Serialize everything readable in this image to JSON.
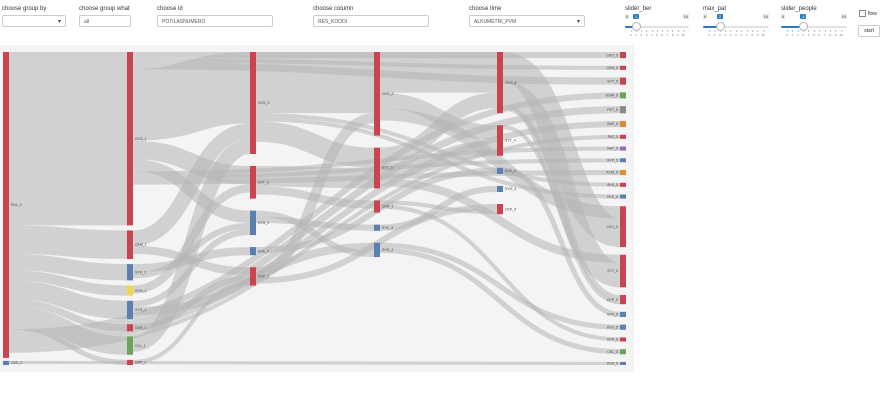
{
  "controls": {
    "group_by": {
      "label": "choose group by",
      "value": ""
    },
    "group_what": {
      "label": "choose group what",
      "value": "all"
    },
    "id": {
      "label": "choose id",
      "value": "POTILASNUMERO"
    },
    "column": {
      "label": "choose column",
      "value": "RES_KOODI"
    },
    "time": {
      "label": "choose time",
      "value": "ALKUMETRI_PVM"
    },
    "slider_ber": {
      "label": "slider_ber",
      "min": "0",
      "max": "10",
      "value": "1",
      "ticks": [
        "0",
        "1",
        "2",
        "3",
        "4",
        "5",
        "6",
        "7",
        "8",
        "9",
        "10"
      ]
    },
    "max_pat": {
      "label": "max_pat",
      "min": "0",
      "max": "10",
      "value": "2",
      "ticks": [
        "0",
        "1",
        "2",
        "3",
        "4",
        "5",
        "6",
        "7",
        "8",
        "9",
        "10"
      ]
    },
    "slider_people": {
      "label": "slider_people",
      "min": "0",
      "max": "10",
      "value": "3",
      "ticks": [
        "0",
        "1",
        "2",
        "3",
        "4",
        "5",
        "6",
        "7",
        "8",
        "9",
        "10"
      ]
    },
    "flow": {
      "label": "flow",
      "checked": false
    },
    "start": {
      "label": "start"
    }
  },
  "colors": {
    "red": "#c9444f",
    "blue": "#5b7fb0",
    "green": "#6aa35a",
    "yellow": "#f0d84a",
    "orange": "#e08a3c",
    "purple": "#9a6bb0",
    "gray": "#8a8a8a",
    "link": "#b5b5b5"
  },
  "chart_data": {
    "type": "sankey",
    "nodes": [
      {
        "id": "c0a",
        "label": "RAL_0",
        "column": 0,
        "value": 300,
        "color": "red"
      },
      {
        "id": "c0b",
        "label": "CDS_0",
        "column": 0,
        "value": 4,
        "color": "blue"
      },
      {
        "id": "c1a",
        "label": "CKG_1",
        "column": 1,
        "value": 170,
        "color": "red"
      },
      {
        "id": "c1b",
        "label": "CEM_1",
        "column": 1,
        "value": 28,
        "color": "red"
      },
      {
        "id": "c1c",
        "label": "SYK_1",
        "column": 1,
        "value": 16,
        "color": "blue"
      },
      {
        "id": "c1d",
        "label": "GYN_1",
        "column": 1,
        "value": 10,
        "color": "yellow"
      },
      {
        "id": "c1e",
        "label": "SYG_1",
        "column": 1,
        "value": 18,
        "color": "blue"
      },
      {
        "id": "c1f",
        "label": "CKR_1",
        "column": 1,
        "value": 7,
        "color": "red"
      },
      {
        "id": "c1g",
        "label": "CKL_1",
        "column": 1,
        "value": 18,
        "color": "green"
      },
      {
        "id": "c1h",
        "label": "CKP_1",
        "column": 1,
        "value": 5,
        "color": "red"
      },
      {
        "id": "c2a",
        "label": "CKG_2",
        "column": 2,
        "value": 100,
        "color": "red"
      },
      {
        "id": "c2b",
        "label": "SYT_2",
        "column": 2,
        "value": 32,
        "color": "red"
      },
      {
        "id": "c2c",
        "label": "SYG_2",
        "column": 2,
        "value": 24,
        "color": "blue"
      },
      {
        "id": "c2d",
        "label": "SYK_2",
        "column": 2,
        "value": 8,
        "color": "blue"
      },
      {
        "id": "c2e",
        "label": "CKP_2",
        "column": 2,
        "value": 18,
        "color": "red"
      },
      {
        "id": "c3a",
        "label": "CKG_3",
        "column": 3,
        "value": 82,
        "color": "red"
      },
      {
        "id": "c3b",
        "label": "SYT_3",
        "column": 3,
        "value": 40,
        "color": "red"
      },
      {
        "id": "c3c",
        "label": "CKR_3",
        "column": 3,
        "value": 12,
        "color": "red"
      },
      {
        "id": "c3d",
        "label": "SYK_3",
        "column": 3,
        "value": 6,
        "color": "blue"
      },
      {
        "id": "c3e",
        "label": "SYG_3",
        "column": 3,
        "value": 14,
        "color": "blue"
      },
      {
        "id": "c4a",
        "label": "CKG_4",
        "column": 4,
        "value": 60,
        "color": "red"
      },
      {
        "id": "c4b",
        "label": "SYT_4",
        "column": 4,
        "value": 30,
        "color": "red"
      },
      {
        "id": "c4c",
        "label": "SYK_4",
        "column": 4,
        "value": 6,
        "color": "blue"
      },
      {
        "id": "c4d",
        "label": "SYG_4",
        "column": 4,
        "value": 6,
        "color": "blue"
      },
      {
        "id": "c4e",
        "label": "CKP_4",
        "column": 4,
        "value": 10,
        "color": "red"
      },
      {
        "id": "c5a",
        "label": "CKO_5",
        "column": 5,
        "value": 6,
        "color": "red"
      },
      {
        "id": "c5b",
        "label": "CKM_5",
        "column": 5,
        "value": 4,
        "color": "red"
      },
      {
        "id": "c5c",
        "label": "SYT_5",
        "column": 5,
        "value": 7,
        "color": "red"
      },
      {
        "id": "c5d",
        "label": "KOW_5",
        "column": 5,
        "value": 6,
        "color": "green"
      },
      {
        "id": "c5e",
        "label": "PKT_5",
        "column": 5,
        "value": 7,
        "color": "gray"
      },
      {
        "id": "c5f",
        "label": "SAP_5",
        "column": 5,
        "value": 6,
        "color": "orange"
      },
      {
        "id": "c5g",
        "label": "PAT_5",
        "column": 5,
        "value": 4,
        "color": "red"
      },
      {
        "id": "c5h",
        "label": "NAT_5",
        "column": 5,
        "value": 4,
        "color": "purple"
      },
      {
        "id": "c5i",
        "label": "SYP_5",
        "column": 5,
        "value": 4,
        "color": "blue"
      },
      {
        "id": "c5j",
        "label": "KCM_5",
        "column": 5,
        "value": 5,
        "color": "orange"
      },
      {
        "id": "c5k",
        "label": "SKS_5",
        "column": 5,
        "value": 4,
        "color": "red"
      },
      {
        "id": "c5l",
        "label": "CKS_5",
        "column": 5,
        "value": 4,
        "color": "blue"
      },
      {
        "id": "c5m",
        "label": "CKG_5",
        "column": 5,
        "value": 40,
        "color": "red"
      },
      {
        "id": "c5n",
        "label": "SYT_5",
        "column": 5,
        "value": 32,
        "color": "red"
      },
      {
        "id": "c5o",
        "label": "CKP_5",
        "column": 5,
        "value": 9,
        "color": "red"
      },
      {
        "id": "c5p",
        "label": "SYK_5",
        "column": 5,
        "value": 5,
        "color": "blue"
      },
      {
        "id": "c5q",
        "label": "SYG_5",
        "column": 5,
        "value": 5,
        "color": "blue"
      },
      {
        "id": "c5r",
        "label": "CKR_5",
        "column": 5,
        "value": 4,
        "color": "red"
      },
      {
        "id": "c5s",
        "label": "CKL_5",
        "column": 5,
        "value": 5,
        "color": "green"
      },
      {
        "id": "c5t",
        "label": "CDS_5",
        "column": 5,
        "value": 3,
        "color": "blue"
      }
    ],
    "links": [
      {
        "source": "c0a",
        "target": "c1a",
        "value": 170
      },
      {
        "source": "c0a",
        "target": "c1b",
        "value": 28
      },
      {
        "source": "c0a",
        "target": "c1c",
        "value": 16
      },
      {
        "source": "c0a",
        "target": "c1d",
        "value": 10
      },
      {
        "source": "c0a",
        "target": "c1e",
        "value": 18
      },
      {
        "source": "c0a",
        "target": "c1f",
        "value": 7
      },
      {
        "source": "c0a",
        "target": "c1g",
        "value": 18
      },
      {
        "source": "c0a",
        "target": "c1h",
        "value": 5
      },
      {
        "source": "c0a",
        "target": "c5d",
        "value": 6
      },
      {
        "source": "c0a",
        "target": "c5e",
        "value": 7
      },
      {
        "source": "c0a",
        "target": "c5f",
        "value": 6
      },
      {
        "source": "c0a",
        "target": "c5g",
        "value": 4
      },
      {
        "source": "c0b",
        "target": "c5t",
        "value": 3
      },
      {
        "source": "c1a",
        "target": "c5a",
        "value": 6
      },
      {
        "source": "c1a",
        "target": "c5b",
        "value": 4
      },
      {
        "source": "c1a",
        "target": "c5c",
        "value": 7
      },
      {
        "source": "c1a",
        "target": "c2a",
        "value": 70
      },
      {
        "source": "c1a",
        "target": "c2b",
        "value": 18
      },
      {
        "source": "c1a",
        "target": "c2c",
        "value": 12
      },
      {
        "source": "c1a",
        "target": "c5h",
        "value": 4
      },
      {
        "source": "c1a",
        "target": "c5i",
        "value": 4
      },
      {
        "source": "c1a",
        "target": "c5j",
        "value": 5
      },
      {
        "source": "c1b",
        "target": "c2a",
        "value": 15
      },
      {
        "source": "c1b",
        "target": "c2e",
        "value": 8
      },
      {
        "source": "c1c",
        "target": "c2d",
        "value": 8
      },
      {
        "source": "c1c",
        "target": "c2c",
        "value": 6
      },
      {
        "source": "c1d",
        "target": "c2b",
        "value": 8
      },
      {
        "source": "c1e",
        "target": "c2c",
        "value": 6
      },
      {
        "source": "c1e",
        "target": "c3e",
        "value": 8
      },
      {
        "source": "c1f",
        "target": "c2e",
        "value": 6
      },
      {
        "source": "c1g",
        "target": "c2a",
        "value": 15
      },
      {
        "source": "c1h",
        "target": "c2e",
        "value": 4
      },
      {
        "source": "c2a",
        "target": "c3a",
        "value": 60
      },
      {
        "source": "c2a",
        "target": "c5k",
        "value": 4
      },
      {
        "source": "c2a",
        "target": "c5l",
        "value": 4
      },
      {
        "source": "c2a",
        "target": "c3b",
        "value": 20
      },
      {
        "source": "c2b",
        "target": "c3b",
        "value": 20
      },
      {
        "source": "c2b",
        "target": "c3c",
        "value": 8
      },
      {
        "source": "c2c",
        "target": "c3e",
        "value": 6
      },
      {
        "source": "c2c",
        "target": "c3d",
        "value": 6
      },
      {
        "source": "c2d",
        "target": "c4c",
        "value": 6
      },
      {
        "source": "c2e",
        "target": "c3a",
        "value": 10
      },
      {
        "source": "c2e",
        "target": "c4e",
        "value": 6
      },
      {
        "source": "c3a",
        "target": "c4a",
        "value": 40
      },
      {
        "source": "c3a",
        "target": "c4b",
        "value": 15
      },
      {
        "source": "c3a",
        "target": "c5m",
        "value": 12
      },
      {
        "source": "c3b",
        "target": "c4a",
        "value": 15
      },
      {
        "source": "c3b",
        "target": "c4b",
        "value": 15
      },
      {
        "source": "c3b",
        "target": "c5n",
        "value": 8
      },
      {
        "source": "c3c",
        "target": "c4e",
        "value": 4
      },
      {
        "source": "c3c",
        "target": "c5r",
        "value": 4
      },
      {
        "source": "c3d",
        "target": "c4d",
        "value": 6
      },
      {
        "source": "c3e",
        "target": "c5q",
        "value": 5
      },
      {
        "source": "c3e",
        "target": "c5s",
        "value": 5
      },
      {
        "source": "c4a",
        "target": "c5m",
        "value": 28
      },
      {
        "source": "c4a",
        "target": "c5n",
        "value": 24
      },
      {
        "source": "c4a",
        "target": "c5o",
        "value": 5
      },
      {
        "source": "c4b",
        "target": "c5m",
        "value": 0
      },
      {
        "source": "c4b",
        "target": "c5o",
        "value": 4
      },
      {
        "source": "c4c",
        "target": "c5p",
        "value": 5
      },
      {
        "source": "c4d",
        "target": "c5q",
        "value": 0
      },
      {
        "source": "c4e",
        "target": "c5o",
        "value": 0
      }
    ]
  }
}
